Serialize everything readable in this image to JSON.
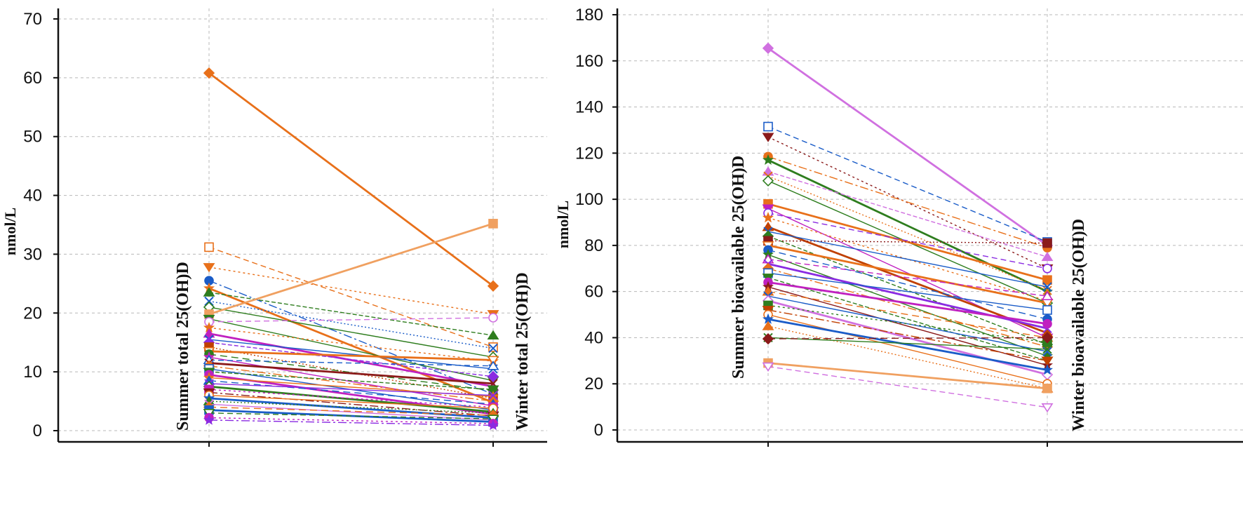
{
  "chart_data": [
    {
      "type": "line",
      "title": "",
      "ylabel": "nmol/L",
      "ylim": [
        0,
        70
      ],
      "yticks": [
        0,
        10,
        20,
        30,
        40,
        50,
        60,
        70
      ],
      "categories": [
        "Summer total 25(OH)D",
        "Winter total 25(OH)D"
      ],
      "grid": true,
      "series": [
        {
          "values": [
            60.8,
            24.6
          ],
          "color": "#e8701a"
        },
        {
          "values": [
            31.2,
            14.2
          ],
          "color": "#e8701a"
        },
        {
          "values": [
            27.8,
            19.8
          ],
          "color": "#e8701a"
        },
        {
          "values": [
            25.5,
            6.2
          ],
          "color": "#1a5cc8"
        },
        {
          "values": [
            24.2,
            4.8
          ],
          "color": "#e8701a"
        },
        {
          "values": [
            23.5,
            16.2
          ],
          "color": "#2e7d1e"
        },
        {
          "values": [
            22.0,
            14.0
          ],
          "color": "#1a5cc8"
        },
        {
          "values": [
            21.0,
            12.5
          ],
          "color": "#2e7d1e"
        },
        {
          "values": [
            19.8,
            35.2
          ],
          "color": "#f0a060"
        },
        {
          "values": [
            19.0,
            8.5
          ],
          "color": "#2e7d1e"
        },
        {
          "values": [
            18.5,
            19.2
          ],
          "color": "#d070e0"
        },
        {
          "values": [
            17.5,
            11.8
          ],
          "color": "#e8701a"
        },
        {
          "values": [
            16.5,
            7.5
          ],
          "color": "#c020c0"
        },
        {
          "values": [
            15.5,
            10.5
          ],
          "color": "#1a5cc8"
        },
        {
          "values": [
            15.0,
            9.2
          ],
          "color": "#8a2be2"
        },
        {
          "values": [
            14.2,
            5.5
          ],
          "color": "#c04000"
        },
        {
          "values": [
            13.5,
            12.0
          ],
          "color": "#e8701a"
        },
        {
          "values": [
            13.0,
            6.8
          ],
          "color": "#2e7d1e"
        },
        {
          "values": [
            12.5,
            4.2
          ],
          "color": "#c020c0"
        },
        {
          "values": [
            12.0,
            11.0
          ],
          "color": "#1a5cc8"
        },
        {
          "values": [
            11.5,
            8.0
          ],
          "color": "#8b1a1a"
        },
        {
          "values": [
            11.0,
            5.0
          ],
          "color": "#e8701a"
        },
        {
          "values": [
            10.5,
            3.5
          ],
          "color": "#1a5cc8"
        },
        {
          "values": [
            10.0,
            7.0
          ],
          "color": "#2e7d1e"
        },
        {
          "values": [
            9.5,
            2.8
          ],
          "color": "#c020c0"
        },
        {
          "values": [
            9.0,
            5.8
          ],
          "color": "#e8701a"
        },
        {
          "values": [
            8.5,
            4.5
          ],
          "color": "#1a5cc8"
        },
        {
          "values": [
            8.0,
            6.0
          ],
          "color": "#8a2be2"
        },
        {
          "values": [
            7.5,
            3.2
          ],
          "color": "#2e7d1e"
        },
        {
          "values": [
            7.0,
            4.0
          ],
          "color": "#c020c0"
        },
        {
          "values": [
            6.5,
            2.5
          ],
          "color": "#8b1a1a"
        },
        {
          "values": [
            6.0,
            3.8
          ],
          "color": "#e8701a"
        },
        {
          "values": [
            5.5,
            2.2
          ],
          "color": "#1a5cc8"
        },
        {
          "values": [
            5.0,
            3.0
          ],
          "color": "#2e7d1e"
        },
        {
          "values": [
            4.5,
            1.8
          ],
          "color": "#d070e0"
        },
        {
          "values": [
            4.0,
            2.6
          ],
          "color": "#e8701a"
        },
        {
          "values": [
            3.5,
            1.5
          ],
          "color": "#1a5cc8"
        },
        {
          "values": [
            3.0,
            2.0
          ],
          "color": "#2e7d1e"
        },
        {
          "values": [
            2.2,
            1.2
          ],
          "color": "#c020c0"
        },
        {
          "values": [
            1.8,
            0.9
          ],
          "color": "#8a2be2"
        }
      ]
    },
    {
      "type": "line",
      "title": "",
      "ylabel": "nmol/L",
      "ylim": [
        0,
        180
      ],
      "yticks": [
        0,
        20,
        40,
        60,
        80,
        100,
        120,
        140,
        160,
        180
      ],
      "categories": [
        "Summer bioavailable 25(OH)D",
        "Winter bioavailable 25(OH)D"
      ],
      "grid": true,
      "series": [
        {
          "values": [
            165.5,
            80.0
          ],
          "color": "#d070e0"
        },
        {
          "values": [
            131.5,
            81.5
          ],
          "color": "#1a5cc8"
        },
        {
          "values": [
            127.0,
            70.0
          ],
          "color": "#8b1a1a"
        },
        {
          "values": [
            118.5,
            79.0
          ],
          "color": "#e8701a"
        },
        {
          "values": [
            117.0,
            60.0
          ],
          "color": "#2e7d1e"
        },
        {
          "values": [
            112.0,
            75.0
          ],
          "color": "#d070e0"
        },
        {
          "values": [
            110.0,
            60.5
          ],
          "color": "#e8701a"
        },
        {
          "values": [
            108.0,
            55.0
          ],
          "color": "#2e7d1e"
        },
        {
          "values": [
            98.0,
            65.0
          ],
          "color": "#e8701a"
        },
        {
          "values": [
            96.0,
            40.0
          ],
          "color": "#c020c0"
        },
        {
          "values": [
            94.0,
            70.0
          ],
          "color": "#8a2be2"
        },
        {
          "values": [
            92.0,
            56.0
          ],
          "color": "#e8701a"
        },
        {
          "values": [
            88.0,
            42.0
          ],
          "color": "#c04000"
        },
        {
          "values": [
            86.0,
            62.0
          ],
          "color": "#1a5cc8"
        },
        {
          "values": [
            84.0,
            37.0
          ],
          "color": "#2e7d1e"
        },
        {
          "values": [
            82.0,
            81.0
          ],
          "color": "#8b1a1a"
        },
        {
          "values": [
            80.0,
            55.0
          ],
          "color": "#e8701a"
        },
        {
          "values": [
            78.0,
            48.0
          ],
          "color": "#1a5cc8"
        },
        {
          "values": [
            76.0,
            32.0
          ],
          "color": "#2e7d1e"
        },
        {
          "values": [
            74.0,
            58.0
          ],
          "color": "#c020c0"
        },
        {
          "values": [
            72.0,
            44.0
          ],
          "color": "#8a2be2"
        },
        {
          "values": [
            70.0,
            36.0
          ],
          "color": "#e8701a"
        },
        {
          "values": [
            68.0,
            52.0
          ],
          "color": "#1a5cc8"
        },
        {
          "values": [
            66.0,
            30.0
          ],
          "color": "#2e7d1e"
        },
        {
          "values": [
            64.0,
            46.0
          ],
          "color": "#c020c0"
        },
        {
          "values": [
            62.0,
            28.0
          ],
          "color": "#8b1a1a"
        },
        {
          "values": [
            60.0,
            40.0
          ],
          "color": "#e8701a"
        },
        {
          "values": [
            58.0,
            34.0
          ],
          "color": "#1a5cc8"
        },
        {
          "values": [
            56.0,
            24.0
          ],
          "color": "#d070e0"
        },
        {
          "values": [
            54.0,
            38.0
          ],
          "color": "#2e7d1e"
        },
        {
          "values": [
            52.0,
            30.0
          ],
          "color": "#c04000"
        },
        {
          "values": [
            50.0,
            20.0
          ],
          "color": "#e8701a"
        },
        {
          "values": [
            48.0,
            26.0
          ],
          "color": "#1a5cc8"
        },
        {
          "values": [
            45.0,
            18.0
          ],
          "color": "#e8701a"
        },
        {
          "values": [
            40.0,
            35.0
          ],
          "color": "#2e7d1e"
        },
        {
          "values": [
            39.5,
            40.0
          ],
          "color": "#8b1a1a"
        },
        {
          "values": [
            29.0,
            18.0
          ],
          "color": "#f0a060"
        },
        {
          "values": [
            27.5,
            9.8
          ],
          "color": "#d070e0"
        }
      ]
    }
  ]
}
